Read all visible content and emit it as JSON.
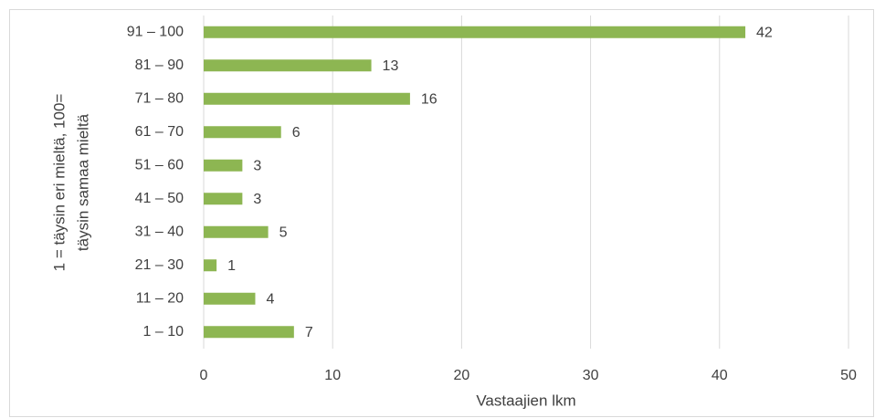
{
  "chart_data": {
    "type": "bar",
    "orientation": "horizontal",
    "categories": [
      "91 – 100",
      "81 – 90",
      "71 – 80",
      "61 – 70",
      "51 – 60",
      "41 – 50",
      "31 – 40",
      "21 – 30",
      "11 – 20",
      "1 – 10"
    ],
    "values": [
      42,
      13,
      16,
      6,
      3,
      3,
      5,
      1,
      4,
      7
    ],
    "color": "#8db652",
    "xlim": [
      0,
      50
    ],
    "xticks": [
      0,
      10,
      20,
      30,
      40,
      50
    ],
    "grid": true,
    "xlabel": "Vastaajien lkm",
    "ylabel": [
      "1 = täysin eri mieltä, 100=",
      "täysin samaa mieltä"
    ]
  }
}
